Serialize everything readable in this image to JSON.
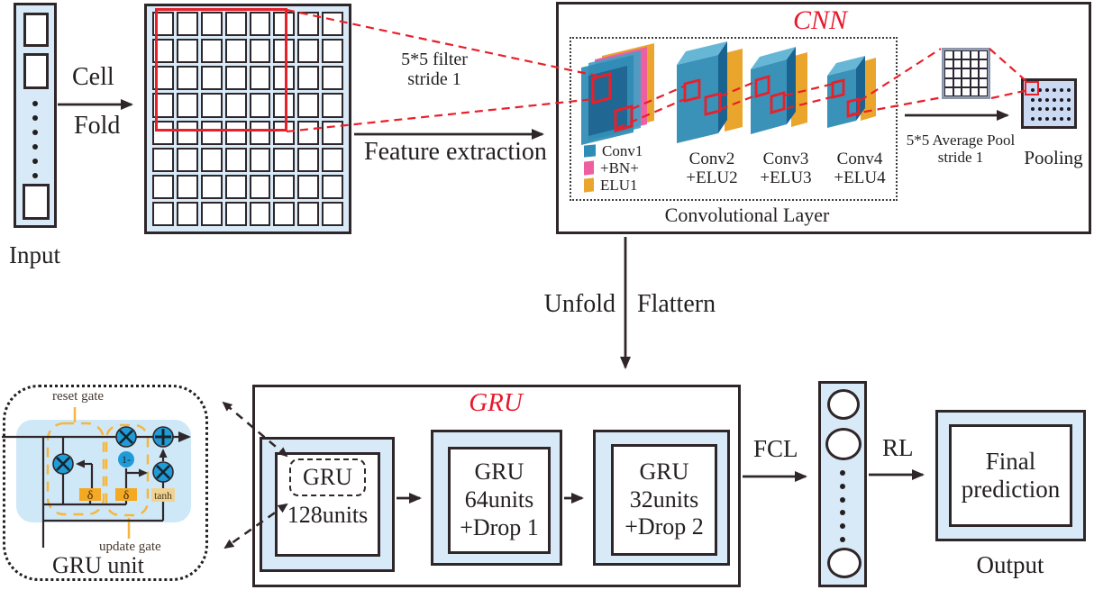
{
  "palette": {
    "accent_red": "#e8192c",
    "light_blue": "#d8eaf8",
    "pooling_blue": "#ccd9f3",
    "dark": "#2f2629",
    "teal": "#2f8cb5",
    "teal_dark": "#206592",
    "pink": "#ee5f9f",
    "orange": "#eaa52c",
    "gate_orange": "#f6b63f",
    "node_blue": "#1f9cd8"
  },
  "input": {
    "label": "Input",
    "cell": "Cell",
    "fold": "Fold",
    "dots": 6
  },
  "fold_grid": {
    "rows": 8,
    "cols": 8
  },
  "annotations": {
    "filter": "5*5 filter\nstride 1",
    "feature_extraction": "Feature extraction",
    "avg_pool": "5*5 Average Pool\nstride 1",
    "unfold": "Unfold",
    "flattern": "Flattern"
  },
  "cnn": {
    "title": "CNN",
    "layer_label": "Convolutional Layer",
    "legend": [
      {
        "label": "Conv1",
        "color": "#2f8cb5"
      },
      {
        "label": "+BN+",
        "color": "#ee5f9f"
      },
      {
        "label": "ELU1",
        "color": "#eaa52c"
      }
    ],
    "conv2": "Conv2\n+ELU2",
    "conv3": "Conv3\n+ELU3",
    "conv4": "Conv4\n+ELU4",
    "pooling_label": "Pooling",
    "pool_dots": {
      "rows": 4,
      "cols": 6
    },
    "prepool_grid": {
      "rows": 5,
      "cols": 5
    }
  },
  "gru": {
    "title": "GRU",
    "block1_unit": "GRU",
    "block1_units": "128units",
    "block2": "GRU\n64units\n+Drop 1",
    "block3": "GRU\n32units\n+Drop 2"
  },
  "gru_unit": {
    "label": "GRU unit",
    "reset_gate": "reset gate",
    "update_gate": "update gate",
    "sigma1": "δ",
    "sigma2": "δ",
    "tanh": "tanh",
    "one_minus": "1-",
    "icons": {
      "multiply": "×",
      "add": "+"
    }
  },
  "flow": {
    "fcl": "FCL",
    "rl": "RL"
  },
  "fc_column": {
    "dots": 6
  },
  "output": {
    "prediction": "Final\nprediction",
    "label": "Output"
  }
}
